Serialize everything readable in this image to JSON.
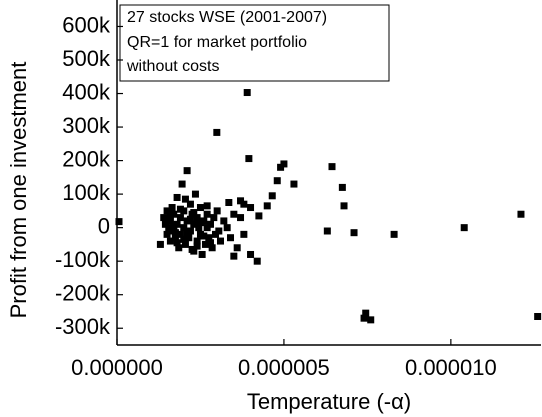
{
  "chart_data": {
    "type": "scatter",
    "annotations": [
      "27 stocks WSE (2001-2007)",
      "QR=1 for market portfolio",
      "without costs"
    ],
    "xlabel": "Temperature (-α)",
    "ylabel": "Profit from one investment",
    "color": "#000000",
    "xlim": [
      0,
      1.27e-05
    ],
    "ylim": [
      -350000,
      670000
    ],
    "xticks": [
      {
        "value": 0,
        "label": "0.000000"
      },
      {
        "value": 5e-06,
        "label": "0.000005"
      },
      {
        "value": 1e-05,
        "label": "0.000010"
      }
    ],
    "yticks": [
      {
        "value": -300000,
        "label": "-300k"
      },
      {
        "value": -200000,
        "label": "-200k"
      },
      {
        "value": -100000,
        "label": "-100k"
      },
      {
        "value": 0,
        "label": "0"
      },
      {
        "value": 100000,
        "label": "100k"
      },
      {
        "value": 200000,
        "label": "200k"
      },
      {
        "value": 300000,
        "label": "300k"
      },
      {
        "value": 400000,
        "label": "400k"
      },
      {
        "value": 500000,
        "label": "500k"
      },
      {
        "value": 600000,
        "label": "600k"
      }
    ],
    "x": [
      1.3e-06,
      1.4e-06,
      1.45e-06,
      1.5e-06,
      1.5e-06,
      1.55e-06,
      1.6e-06,
      1.6e-06,
      1.65e-06,
      1.7e-06,
      1.7e-06,
      1.75e-06,
      1.8e-06,
      1.8e-06,
      1.85e-06,
      1.9e-06,
      1.9e-06,
      1.95e-06,
      2e-06,
      2e-06,
      2.05e-06,
      2.1e-06,
      2.1e-06,
      2.15e-06,
      2.2e-06,
      2.2e-06,
      2.25e-06,
      2.3e-06,
      2.3e-06,
      2.35e-06,
      2.4e-06,
      2.4e-06,
      2.45e-06,
      2.5e-06,
      2.5e-06,
      2.55e-06,
      2.6e-06,
      2.65e-06,
      2.7e-06,
      2.7e-06,
      2.75e-06,
      2.8e-06,
      2.85e-06,
      2.9e-06,
      2.95e-06,
      3e-06,
      3.05e-06,
      3.1e-06,
      3.2e-06,
      3.3e-06,
      3.4e-06,
      3.5e-06,
      3.6e-06,
      3.7e-06,
      3.8e-06,
      4e-06,
      4.2e-06,
      4e-06,
      3.8e-06,
      3.5e-06,
      1.6e-06,
      1.7e-06,
      1.8e-06,
      1.9e-06,
      2e-06,
      2.1e-06,
      2.2e-06,
      2.3e-06,
      2.4e-06,
      2.5e-06,
      2.6e-06,
      2.7e-06,
      2.8e-06,
      1.5e-06,
      1.6e-06,
      1.75e-06,
      2.05e-06,
      2.25e-06,
      3.35e-06,
      6e-08,
      3.9e-06,
      2.99e-06,
      3.95e-06,
      4.5e-06,
      4.8e-06,
      5.3e-06,
      4.9e-06,
      5e-06,
      4.65e-06,
      6.44e-06,
      6.75e-06,
      6.8e-06,
      6.3e-06,
      7.1e-06,
      8.3e-06,
      1.04e-05,
      1.21e-05,
      1.26e-05,
      7.4e-06,
      7.45e-06,
      7.6e-06,
      3.7e-06,
      4.25e-06
    ],
    "values": [
      -50000,
      30000,
      10000,
      -20000,
      50000,
      0,
      -40000,
      20000,
      60000,
      -10000,
      40000,
      -30000,
      10000,
      90000,
      -60000,
      30000,
      -20000,
      130000,
      0,
      50000,
      -50000,
      20000,
      170000,
      -30000,
      70000,
      -10000,
      40000,
      -70000,
      10000,
      100000,
      -40000,
      30000,
      0,
      -20000,
      60000,
      -80000,
      20000,
      -50000,
      40000,
      0,
      -30000,
      10000,
      -60000,
      30000,
      -20000,
      50000,
      -10000,
      -40000,
      20000,
      0,
      -30000,
      40000,
      -60000,
      80000,
      -20000,
      60000,
      -100000,
      -80000,
      70000,
      -85000,
      -5000,
      5000,
      -45000,
      55000,
      -35000,
      -15000,
      25000,
      45000,
      -55000,
      15000,
      -25000,
      65000,
      -45000,
      25000,
      45000,
      -15000,
      85000,
      -65000,
      75000,
      18000,
      403000,
      284000,
      206000,
      65000,
      140000,
      130000,
      180000,
      190000,
      95000,
      182000,
      120000,
      65000,
      -10000,
      -15000,
      -20000,
      0,
      40000,
      -265000,
      -270000,
      -255000,
      -275000,
      30000,
      35000
    ]
  }
}
